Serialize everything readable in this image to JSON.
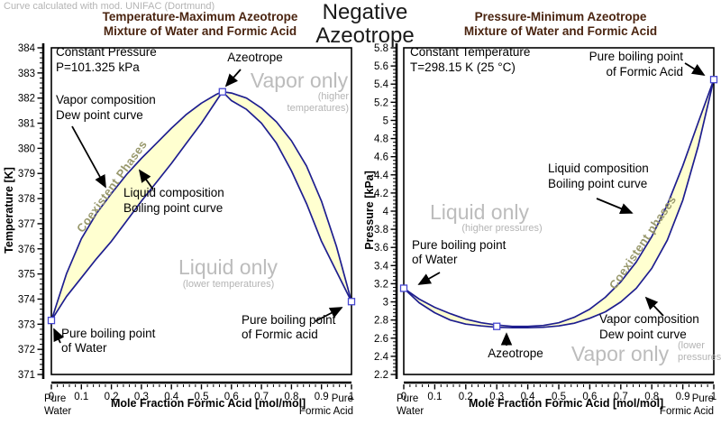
{
  "credit": "Curve calculated with mod. UNIFAC (Dortmund)",
  "main_title": {
    "line1": "Negative",
    "line2": "Azeotrope"
  },
  "colors": {
    "curve": "#1e1e8f",
    "band": "#ffffd0",
    "marker": "#4646d0",
    "chart_title": "#4a2410",
    "region_text": "#bcbcbc",
    "coexistent_text": "#98986c"
  },
  "chart_data": [
    {
      "type": "line",
      "title": "Temperature-Maximum Azeotrope",
      "subtitle": "Mixture of Water and Formic Acid",
      "xlabel": "Mole Fraction Formic Acid [mol/mol]",
      "ylabel": "Temperature [K]",
      "xlim": [
        0,
        1
      ],
      "ylim": [
        371,
        384
      ],
      "xticks": [
        "0",
        "0.1",
        "0.2",
        "0.3",
        "0.4",
        "0.5",
        "0.6",
        "0.7",
        "0.8",
        "0.9",
        "1"
      ],
      "yticks": [
        "371",
        "372",
        "373",
        "374",
        "375",
        "376",
        "377",
        "378",
        "379",
        "380",
        "381",
        "382",
        "383",
        "384"
      ],
      "x": [
        0,
        0.05,
        0.1,
        0.15,
        0.2,
        0.25,
        0.3,
        0.35,
        0.4,
        0.45,
        0.5,
        0.55,
        0.57,
        0.6,
        0.65,
        0.7,
        0.75,
        0.8,
        0.85,
        0.9,
        0.95,
        1
      ],
      "series": [
        {
          "name": "Vapor composition / Dew point curve",
          "values": [
            373.15,
            375.0,
            376.4,
            377.4,
            378.2,
            378.95,
            379.6,
            380.2,
            380.8,
            381.35,
            381.8,
            382.15,
            382.25,
            382.2,
            382.0,
            381.6,
            381.05,
            380.3,
            379.3,
            377.9,
            376.1,
            373.9
          ]
        },
        {
          "name": "Liquid composition / Boiling point curve",
          "values": [
            373.15,
            374.1,
            374.85,
            375.6,
            376.3,
            377.1,
            377.9,
            378.65,
            379.4,
            380.2,
            381.0,
            381.9,
            382.25,
            381.9,
            381.55,
            381.0,
            380.2,
            379.1,
            377.8,
            376.3,
            375.1,
            373.9
          ]
        }
      ],
      "markers": [
        {
          "label": "Pure boiling point of Water",
          "x": 0,
          "y": 373.15
        },
        {
          "label": "Azeotrope",
          "x": 0.57,
          "y": 382.25
        },
        {
          "label": "Pure boiling point of Formic acid",
          "x": 1,
          "y": 373.9
        }
      ],
      "annotations": {
        "constant_l1": "Constant Pressure",
        "constant_l2": "P=101.325 kPa",
        "azeotrope": "Azeotrope",
        "vapor_region": "Vapor only",
        "vapor_region_sub_l1": "(higher",
        "vapor_region_sub_l2": "temperatures)",
        "dew_l1": "Vapor composition",
        "dew_l2": "Dew point curve",
        "coexistent": "Coexistent Phases",
        "boil_l1": "Liquid composition",
        "boil_l2": "Boiling point curve",
        "liquid_region": "Liquid only",
        "liquid_region_sub": "(lower temperatures)",
        "pure_water_l1": "Pure boiling point",
        "pure_water_l2": "of Water",
        "pure_fa_l1": "Pure boiling point",
        "pure_fa_l2": "of Formic acid",
        "x_left_l1": "Pure",
        "x_left_l2": "Water",
        "x_right_l1": "Pure",
        "x_right_l2": "Formic Acid"
      }
    },
    {
      "type": "line",
      "title": "Pressure-Minimum Azeotrope",
      "subtitle": "Mixture of Water and Formic Acid",
      "xlabel": "Mole Fraction Formic Acid [mol/mol]",
      "ylabel": "Pressure [kPa]",
      "xlim": [
        0,
        1
      ],
      "ylim": [
        2.2,
        5.8
      ],
      "xticks": [
        "0",
        "0.1",
        "0.2",
        "0.3",
        "0.4",
        "0.5",
        "0.6",
        "0.7",
        "0.8",
        "0.9",
        "1"
      ],
      "yticks": [
        "2.2",
        "2.4",
        "2.6",
        "2.8",
        "3",
        "3.2",
        "3.4",
        "3.6",
        "3.8",
        "4",
        "4.2",
        "4.4",
        "4.6",
        "4.8",
        "5",
        "5.2",
        "5.4",
        "5.6",
        "5.8"
      ],
      "x": [
        0,
        0.05,
        0.1,
        0.15,
        0.2,
        0.25,
        0.3,
        0.35,
        0.4,
        0.45,
        0.5,
        0.55,
        0.6,
        0.65,
        0.7,
        0.75,
        0.8,
        0.85,
        0.9,
        0.95,
        1
      ],
      "series": [
        {
          "name": "Liquid composition / Boiling point curve",
          "values": [
            3.15,
            3.03,
            2.94,
            2.87,
            2.81,
            2.77,
            2.745,
            2.73,
            2.73,
            2.74,
            2.77,
            2.83,
            2.92,
            3.05,
            3.22,
            3.44,
            3.72,
            4.07,
            4.5,
            4.98,
            5.45
          ]
        },
        {
          "name": "Vapor composition / Dew point curve",
          "values": [
            3.15,
            2.99,
            2.88,
            2.8,
            2.755,
            2.735,
            2.72,
            2.715,
            2.715,
            2.72,
            2.735,
            2.765,
            2.82,
            2.89,
            3.0,
            3.15,
            3.37,
            3.68,
            4.12,
            4.72,
            5.45
          ]
        }
      ],
      "markers": [
        {
          "label": "Pure boiling point of Water",
          "x": 0,
          "y": 3.15
        },
        {
          "label": "Azeotrope",
          "x": 0.3,
          "y": 2.73
        },
        {
          "label": "Pure boiling point of Formic Acid",
          "x": 1,
          "y": 5.45
        }
      ],
      "annotations": {
        "constant_l1": "Constant Temperature",
        "constant_l2": "T=298.15 K (25 °C)",
        "pure_fa_l1": "Pure boiling point",
        "pure_fa_l2": "of Formic Acid",
        "boil_l1": "Liquid composition",
        "boil_l2": "Boiling point curve",
        "liquid_region": "Liquid only",
        "liquid_region_sub": "(higher pressures)",
        "pure_water_l1": "Pure boiling point",
        "pure_water_l2": "of Water",
        "coexistent": "Coexistent phases",
        "dew_l1": "Vapor composition",
        "dew_l2": "Dew point curve",
        "azeotrope": "Azeotrope",
        "vapor_region": "Vapor only",
        "vapor_region_sub_l1": "(lower",
        "vapor_region_sub_l2": "pressures)",
        "x_left_l1": "Pure",
        "x_left_l2": "Water",
        "x_right_l1": "Pure",
        "x_right_l2": "Formic Acid"
      }
    }
  ]
}
